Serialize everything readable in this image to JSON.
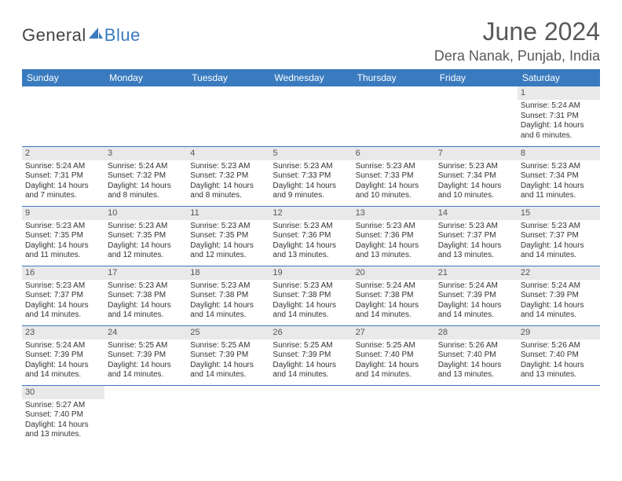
{
  "brand": {
    "part1": "General",
    "part2": "Blue"
  },
  "title": "June 2024",
  "location": "Dera Nanak, Punjab, India",
  "colors": {
    "header_bg": "#3a7bbf",
    "header_text": "#ffffff",
    "daynum_bg": "#e9e9e9",
    "text": "#333333",
    "title_color": "#595959",
    "rule": "#3a7bbf"
  },
  "weekdays": [
    "Sunday",
    "Monday",
    "Tuesday",
    "Wednesday",
    "Thursday",
    "Friday",
    "Saturday"
  ],
  "weeks": [
    [
      null,
      null,
      null,
      null,
      null,
      null,
      {
        "n": "1",
        "sr": "5:24 AM",
        "ss": "7:31 PM",
        "dl": "14 hours and 6 minutes."
      }
    ],
    [
      {
        "n": "2",
        "sr": "5:24 AM",
        "ss": "7:31 PM",
        "dl": "14 hours and 7 minutes."
      },
      {
        "n": "3",
        "sr": "5:24 AM",
        "ss": "7:32 PM",
        "dl": "14 hours and 8 minutes."
      },
      {
        "n": "4",
        "sr": "5:23 AM",
        "ss": "7:32 PM",
        "dl": "14 hours and 8 minutes."
      },
      {
        "n": "5",
        "sr": "5:23 AM",
        "ss": "7:33 PM",
        "dl": "14 hours and 9 minutes."
      },
      {
        "n": "6",
        "sr": "5:23 AM",
        "ss": "7:33 PM",
        "dl": "14 hours and 10 minutes."
      },
      {
        "n": "7",
        "sr": "5:23 AM",
        "ss": "7:34 PM",
        "dl": "14 hours and 10 minutes."
      },
      {
        "n": "8",
        "sr": "5:23 AM",
        "ss": "7:34 PM",
        "dl": "14 hours and 11 minutes."
      }
    ],
    [
      {
        "n": "9",
        "sr": "5:23 AM",
        "ss": "7:35 PM",
        "dl": "14 hours and 11 minutes."
      },
      {
        "n": "10",
        "sr": "5:23 AM",
        "ss": "7:35 PM",
        "dl": "14 hours and 12 minutes."
      },
      {
        "n": "11",
        "sr": "5:23 AM",
        "ss": "7:35 PM",
        "dl": "14 hours and 12 minutes."
      },
      {
        "n": "12",
        "sr": "5:23 AM",
        "ss": "7:36 PM",
        "dl": "14 hours and 13 minutes."
      },
      {
        "n": "13",
        "sr": "5:23 AM",
        "ss": "7:36 PM",
        "dl": "14 hours and 13 minutes."
      },
      {
        "n": "14",
        "sr": "5:23 AM",
        "ss": "7:37 PM",
        "dl": "14 hours and 13 minutes."
      },
      {
        "n": "15",
        "sr": "5:23 AM",
        "ss": "7:37 PM",
        "dl": "14 hours and 14 minutes."
      }
    ],
    [
      {
        "n": "16",
        "sr": "5:23 AM",
        "ss": "7:37 PM",
        "dl": "14 hours and 14 minutes."
      },
      {
        "n": "17",
        "sr": "5:23 AM",
        "ss": "7:38 PM",
        "dl": "14 hours and 14 minutes."
      },
      {
        "n": "18",
        "sr": "5:23 AM",
        "ss": "7:38 PM",
        "dl": "14 hours and 14 minutes."
      },
      {
        "n": "19",
        "sr": "5:23 AM",
        "ss": "7:38 PM",
        "dl": "14 hours and 14 minutes."
      },
      {
        "n": "20",
        "sr": "5:24 AM",
        "ss": "7:38 PM",
        "dl": "14 hours and 14 minutes."
      },
      {
        "n": "21",
        "sr": "5:24 AM",
        "ss": "7:39 PM",
        "dl": "14 hours and 14 minutes."
      },
      {
        "n": "22",
        "sr": "5:24 AM",
        "ss": "7:39 PM",
        "dl": "14 hours and 14 minutes."
      }
    ],
    [
      {
        "n": "23",
        "sr": "5:24 AM",
        "ss": "7:39 PM",
        "dl": "14 hours and 14 minutes."
      },
      {
        "n": "24",
        "sr": "5:25 AM",
        "ss": "7:39 PM",
        "dl": "14 hours and 14 minutes."
      },
      {
        "n": "25",
        "sr": "5:25 AM",
        "ss": "7:39 PM",
        "dl": "14 hours and 14 minutes."
      },
      {
        "n": "26",
        "sr": "5:25 AM",
        "ss": "7:39 PM",
        "dl": "14 hours and 14 minutes."
      },
      {
        "n": "27",
        "sr": "5:25 AM",
        "ss": "7:40 PM",
        "dl": "14 hours and 14 minutes."
      },
      {
        "n": "28",
        "sr": "5:26 AM",
        "ss": "7:40 PM",
        "dl": "14 hours and 13 minutes."
      },
      {
        "n": "29",
        "sr": "5:26 AM",
        "ss": "7:40 PM",
        "dl": "14 hours and 13 minutes."
      }
    ],
    [
      {
        "n": "30",
        "sr": "5:27 AM",
        "ss": "7:40 PM",
        "dl": "14 hours and 13 minutes."
      },
      null,
      null,
      null,
      null,
      null,
      null
    ]
  ],
  "labels": {
    "sunrise": "Sunrise: ",
    "sunset": "Sunset: ",
    "daylight": "Daylight: "
  }
}
